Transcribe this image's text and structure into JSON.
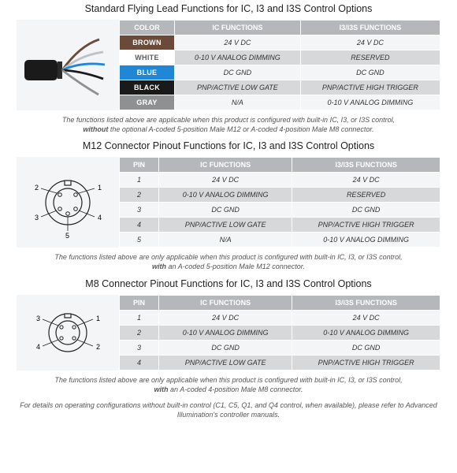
{
  "colors": {
    "header_bg": "#b5b7ba",
    "row_alt_bg": "#d6d8da",
    "panel_bg": "#f4f5f6",
    "brown": "#6b4a3a",
    "white": "#ffffff",
    "blue": "#1f87d6",
    "black": "#1a1a1a",
    "gray": "#8e9092",
    "white_text": "#5a5a5a"
  },
  "flying": {
    "title": "Standard Flying Lead Functions for IC, I3 and I3S Control Options",
    "headers": {
      "c0": "COLOR",
      "c1": "IC FUNCTIONS",
      "c2": "I3/I3S FUNCTIONS"
    },
    "rows": [
      {
        "color_label": "BROWN",
        "color_key": "brown",
        "ic": "24 V DC",
        "i3": "24 V DC"
      },
      {
        "color_label": "WHITE",
        "color_key": "white",
        "ic": "0-10 V ANALOG DIMMING",
        "i3": "RESERVED"
      },
      {
        "color_label": "BLUE",
        "color_key": "blue",
        "ic": "DC GND",
        "i3": "DC GND"
      },
      {
        "color_label": "BLACK",
        "color_key": "black",
        "ic": "PNP/ACTIVE LOW GATE",
        "i3": "PNP/ACTIVE HIGH TRIGGER"
      },
      {
        "color_label": "GRAY",
        "color_key": "gray",
        "ic": "N/A",
        "i3": "0-10 V ANALOG DIMMING"
      }
    ],
    "caption_pre": "The functions listed above are applicable when this product is configured with built-in IC, I3, or I3S control,",
    "caption_bold": "without",
    "caption_post": " the optional A-coded 5-position Male M12 or A-coded 4-position Male M8 connector."
  },
  "m12": {
    "title": "M12 Connector Pinout Functions for IC, I3 and I3S Control Options",
    "headers": {
      "c0": "PIN",
      "c1": "IC FUNCTIONS",
      "c2": "I3/I3S FUNCTIONS"
    },
    "rows": [
      {
        "pin": "1",
        "ic": "24 V DC",
        "i3": "24 V DC"
      },
      {
        "pin": "2",
        "ic": "0-10 V ANALOG DIMMING",
        "i3": "RESERVED"
      },
      {
        "pin": "3",
        "ic": "DC GND",
        "i3": "DC GND"
      },
      {
        "pin": "4",
        "ic": "PNP/ACTIVE LOW GATE",
        "i3": "PNP/ACTIVE HIGH TRIGGER"
      },
      {
        "pin": "5",
        "ic": "N/A",
        "i3": "0-10 V ANALOG DIMMING"
      }
    ],
    "pin_labels": {
      "p1": "1",
      "p2": "2",
      "p3": "3",
      "p4": "4",
      "p5": "5"
    },
    "caption_pre": "The functions listed above are only applicable when this product is configured with built-in IC, I3, or I3S control,",
    "caption_bold": "with",
    "caption_post": " an A-coded 5-position Male M12 connector."
  },
  "m8": {
    "title": "M8 Connector Pinout Functions for IC, I3 and I3S Control Options",
    "headers": {
      "c0": "PIN",
      "c1": "IC FUNCTIONS",
      "c2": "I3/I3S FUNCTIONS"
    },
    "rows": [
      {
        "pin": "1",
        "ic": "24 V DC",
        "i3": "24 V DC"
      },
      {
        "pin": "2",
        "ic": "0-10 V ANALOG DIMMING",
        "i3": "0-10 V ANALOG DIMMING"
      },
      {
        "pin": "3",
        "ic": "DC GND",
        "i3": "DC GND"
      },
      {
        "pin": "4",
        "ic": "PNP/ACTIVE LOW GATE",
        "i3": "PNP/ACTIVE HIGH TRIGGER"
      }
    ],
    "pin_labels": {
      "p1": "1",
      "p2": "2",
      "p3": "3",
      "p4": "4"
    },
    "caption_pre": "The functions listed above are only applicable when this product is configured with built-in IC, I3, or I3S control,",
    "caption_bold": "with",
    "caption_post": " an A-coded 4-position Male M8 connector."
  },
  "footer": "For details on operating configurations without built-in control (C1, C5, Q1, and Q4 control, when available), please refer to Advanced Illumination's controller manuals."
}
